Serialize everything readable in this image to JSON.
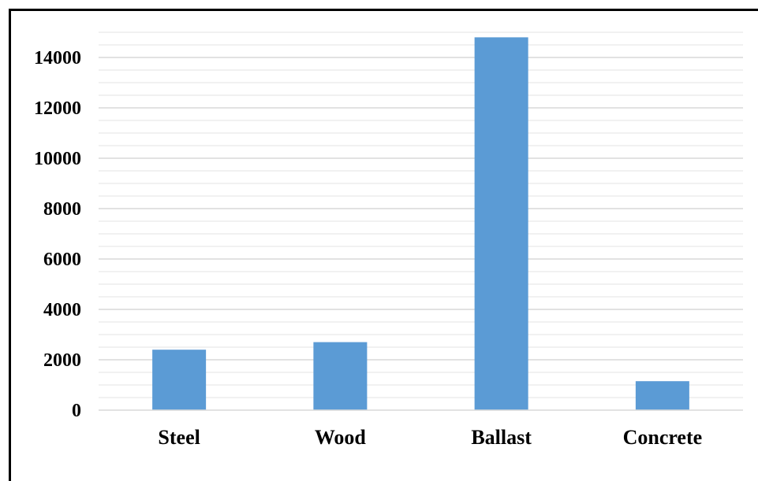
{
  "chart_data": {
    "type": "bar",
    "categories": [
      "Steel",
      "Wood",
      "Ballast",
      "Concrete"
    ],
    "values": [
      2400,
      2700,
      14800,
      1150
    ],
    "ylim": [
      0,
      15000
    ],
    "yticks": [
      0,
      2000,
      4000,
      6000,
      8000,
      10000,
      12000,
      14000
    ],
    "grid": true,
    "minor_grid": true,
    "bar_color": "#5b9bd5",
    "grid_color": "#d9d9d9",
    "title": "",
    "xlabel": "",
    "ylabel": ""
  }
}
